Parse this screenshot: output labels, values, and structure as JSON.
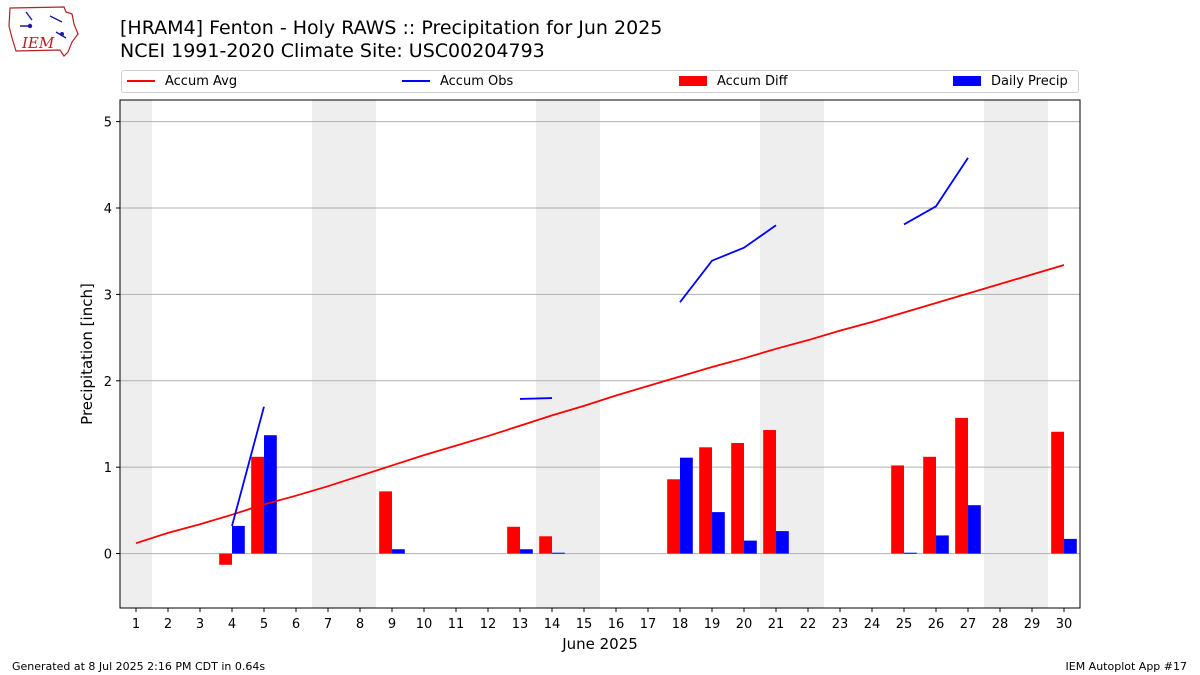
{
  "header": {
    "title_line1": "[HRAM4] Fenton - Holy RAWS :: Precipitation for Jun 2025",
    "title_line2": "NCEI 1991-2020 Climate Site: USC00204793"
  },
  "logo": {
    "text": "IEM",
    "icon": "iem-iowa-logo-icon"
  },
  "legend": {
    "accum_avg": "Accum Avg",
    "accum_obs": "Accum Obs",
    "accum_diff": "Accum Diff",
    "daily_precip": "Daily Precip"
  },
  "footer": {
    "left": "Generated at 8 Jul 2025 2:16 PM CDT in 0.64s",
    "right": "IEM Autoplot App #17"
  },
  "colors": {
    "accum_avg": "#ff0000",
    "accum_obs": "#0000ff",
    "accum_diff": "#ff0000",
    "daily_precip": "#0000ff",
    "weekend_band": "#eeeeee",
    "grid": "#b0b0b0"
  },
  "chart_data": {
    "type": "bar",
    "xlabel": "June 2025",
    "ylabel": "Precipitation [inch]",
    "x": [
      1,
      2,
      3,
      4,
      5,
      6,
      7,
      8,
      9,
      10,
      11,
      12,
      13,
      14,
      15,
      16,
      17,
      18,
      19,
      20,
      21,
      22,
      23,
      24,
      25,
      26,
      27,
      28,
      29,
      30
    ],
    "x_ticks": [
      "1",
      "2",
      "3",
      "4",
      "5",
      "6",
      "7",
      "8",
      "9",
      "10",
      "11",
      "12",
      "13",
      "14",
      "15",
      "16",
      "17",
      "18",
      "19",
      "20",
      "21",
      "22",
      "23",
      "24",
      "25",
      "26",
      "27",
      "28",
      "29",
      "30"
    ],
    "xlim": [
      0.5,
      30.5
    ],
    "ylim": [
      -0.63,
      5.25
    ],
    "y_ticks": [
      0,
      1,
      2,
      3,
      4,
      5
    ],
    "y_tick_labels": [
      "0",
      "1",
      "2",
      "3",
      "4",
      "5"
    ],
    "grid": "horizontal",
    "legend_position": "top",
    "weekend_days": [
      1,
      7,
      8,
      14,
      15,
      21,
      22,
      28,
      29
    ],
    "series": [
      {
        "name": "Accum Avg",
        "kind": "line",
        "values": [
          0.12,
          0.24,
          0.34,
          0.45,
          0.57,
          0.67,
          0.78,
          0.9,
          1.02,
          1.14,
          1.25,
          1.36,
          1.48,
          1.6,
          1.71,
          1.83,
          1.94,
          2.05,
          2.16,
          2.26,
          2.37,
          2.47,
          2.58,
          2.68,
          2.79,
          2.9,
          3.01,
          3.12,
          3.23,
          3.34
        ]
      },
      {
        "name": "Accum Obs",
        "kind": "line",
        "values": [
          null,
          null,
          null,
          0.32,
          1.7,
          null,
          null,
          null,
          null,
          null,
          null,
          null,
          1.79,
          1.8,
          null,
          null,
          null,
          2.91,
          3.39,
          3.54,
          3.8,
          null,
          null,
          null,
          3.81,
          4.02,
          4.58,
          null,
          null,
          null
        ]
      },
      {
        "name": "Accum Diff",
        "kind": "bar",
        "values": [
          null,
          null,
          null,
          -0.13,
          1.12,
          null,
          null,
          null,
          0.72,
          null,
          null,
          null,
          0.31,
          0.2,
          null,
          null,
          null,
          0.86,
          1.23,
          1.28,
          1.43,
          null,
          null,
          null,
          1.02,
          1.12,
          1.57,
          null,
          null,
          1.41
        ]
      },
      {
        "name": "Daily Precip",
        "kind": "bar",
        "values": [
          null,
          null,
          null,
          0.32,
          1.37,
          null,
          null,
          null,
          0.05,
          null,
          null,
          null,
          0.05,
          0.01,
          null,
          null,
          null,
          1.11,
          0.48,
          0.15,
          0.26,
          null,
          null,
          null,
          0.01,
          0.21,
          0.56,
          null,
          null,
          0.17
        ]
      }
    ]
  }
}
